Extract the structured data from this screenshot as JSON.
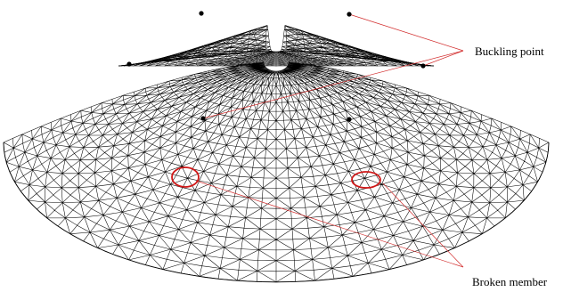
{
  "labels": {
    "buckling": "Buckling point",
    "broken": "Broken member"
  },
  "colors": {
    "mesh": "#000000",
    "leader": "#d22c2c",
    "circle": "#d01818",
    "node": "#000000"
  }
}
